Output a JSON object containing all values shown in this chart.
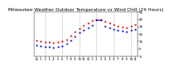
{
  "title": "Milwaukee Weather Outdoor Temperature vs Wind Chill (24 Hours)",
  "title_fontsize": 4.2,
  "background_color": "#ffffff",
  "grid_color": "#888888",
  "hours": [
    0,
    1,
    2,
    3,
    4,
    5,
    6,
    7,
    8,
    9,
    10,
    11,
    12,
    13,
    14,
    15,
    16,
    17,
    18,
    19,
    20,
    21,
    22,
    23
  ],
  "temp": [
    16,
    15,
    14,
    14,
    13,
    14,
    15,
    18,
    23,
    28,
    33,
    37,
    40,
    43,
    44,
    44,
    42,
    40,
    38,
    36,
    35,
    34,
    36,
    38
  ],
  "windchill": [
    10,
    9,
    8,
    8,
    7,
    8,
    9,
    12,
    17,
    22,
    27,
    31,
    34,
    37,
    44,
    44,
    36,
    34,
    32,
    30,
    29,
    28,
    30,
    32
  ],
  "temp_color": "#dd0000",
  "windchill_color": "#0000cc",
  "ylim_min": -5,
  "ylim_max": 55,
  "ytick_values": [
    -5,
    5,
    15,
    25,
    35,
    45,
    55
  ],
  "ytick_labels": [
    "-5",
    "5",
    "15",
    "25",
    "35",
    "45",
    "55"
  ],
  "xlim_min": -0.5,
  "xlim_max": 23.5,
  "xtick_positions": [
    0,
    1,
    2,
    3,
    4,
    5,
    6,
    7,
    8,
    9,
    10,
    11,
    12,
    13,
    14,
    15,
    16,
    17,
    18,
    19,
    20,
    21,
    22,
    23
  ],
  "xtick_labels": [
    "12",
    "1",
    "2",
    "3",
    "4",
    "5",
    "6",
    "7",
    "8",
    "9",
    "10",
    "11",
    "12",
    "1",
    "2",
    "3",
    "4",
    "5",
    "6",
    "7",
    "8",
    "9",
    "10",
    "11"
  ],
  "marker_size": 1.2,
  "grid_positions": [
    2,
    6,
    10,
    14,
    18,
    22
  ],
  "blue_line_x": [
    14,
    15
  ],
  "blue_line_y": [
    44,
    44
  ]
}
